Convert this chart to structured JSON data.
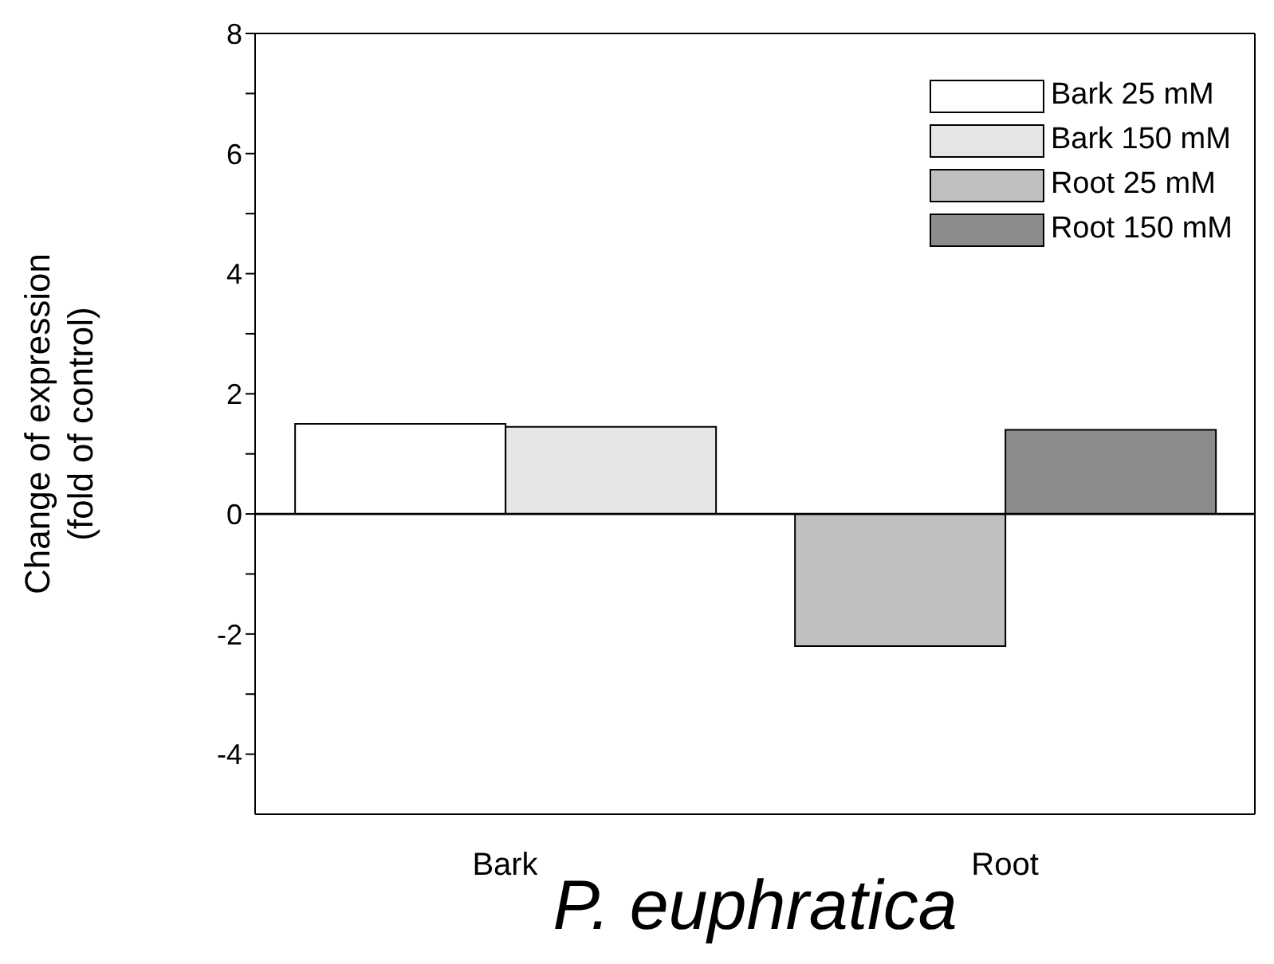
{
  "chart_data": {
    "type": "bar",
    "xlabel": "P. euphratica",
    "ylabel": "Change of expression\n(fold of control)",
    "categories": [
      "Bark",
      "Root"
    ],
    "series": [
      {
        "name": "Bark 25 mM",
        "color": "#ffffff",
        "values": [
          1.5,
          null
        ]
      },
      {
        "name": "Bark 150 mM",
        "color": "#e6e6e6",
        "values": [
          1.45,
          null
        ]
      },
      {
        "name": "Root 25 mM",
        "color": "#c0c0c0",
        "values": [
          null,
          -2.2
        ]
      },
      {
        "name": "Root 150 mM",
        "color": "#8c8c8c",
        "values": [
          null,
          1.4
        ]
      }
    ],
    "ylim": [
      -5,
      8
    ],
    "yticks": [
      -4,
      {
        "value": -3,
        "label": null
      },
      -2,
      {
        "value": -1,
        "label": null
      },
      0,
      {
        "value": 1,
        "label": null
      },
      2,
      {
        "value": 3,
        "label": null
      },
      4,
      {
        "value": 5,
        "label": null
      },
      6,
      {
        "value": 7,
        "label": null
      },
      8
    ],
    "ref_lines": [
      {
        "axis": "y",
        "value": 0,
        "color": "#000000"
      }
    ],
    "grid": false,
    "legend": "top right"
  }
}
